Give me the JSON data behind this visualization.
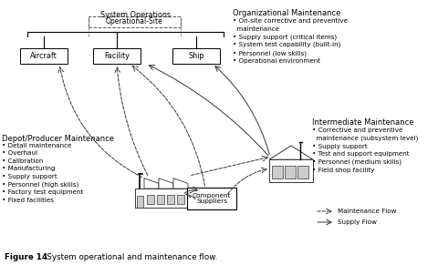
{
  "bg_color": "#ffffff",
  "system_ops_label": "System Operations",
  "operational_site_label": "Operational-Site",
  "boxes": [
    "Aircraft",
    "Facility",
    "Ship"
  ],
  "org_maint_title": "Organizational Maintenance",
  "org_maint_bullets": "• On-site corrective and preventive\n  maintenance\n• Supply support (critical items)\n• System test capability (built-in)\n• Personnel (low skills)\n• Operational environment",
  "int_maint_title": "Intermediate Maintenance",
  "int_maint_bullets": "• Corrective and preventive\n  maintenance (subsystem level)\n• Supply support\n• Test and support equipment\n• Personnel (medium skills)\n• Field shop facility",
  "depot_maint_title": "Depot/Producer Maintenance",
  "depot_maint_bullets": "• Detail maintenance\n• Overhaul\n• Calibration\n• Manufacturing\n• Supply support\n• Personnel (high skills)\n• Factory test equipment\n• Fixed facilities",
  "component_label": "Component\nSuppliers",
  "legend_maint_label": "Maintenance Flow",
  "legend_supply_label": "Supply Flow",
  "fig_caption_bold": "Figure 14",
  "fig_caption_normal": "   System operational and maintenance flow."
}
